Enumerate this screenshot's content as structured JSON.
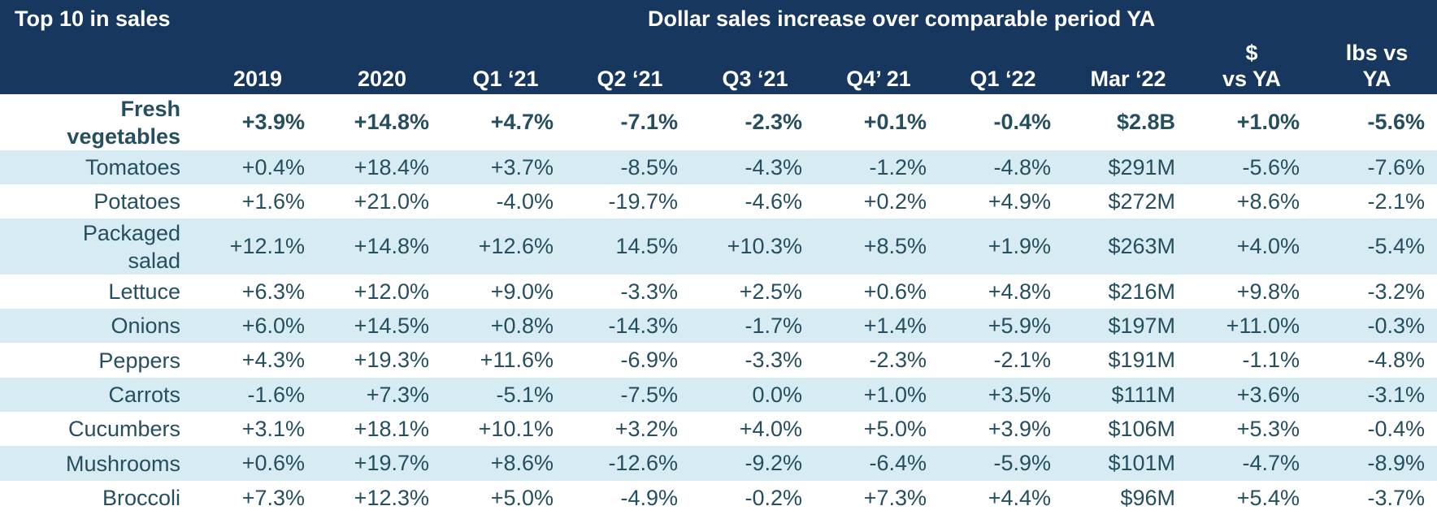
{
  "header": {
    "left_title": "Top 10 in sales",
    "right_title": "Dollar sales increase over comparable period YA",
    "columns": [
      "2019",
      "2020",
      "Q1 ‘21",
      "Q2 ‘21",
      "Q3 ‘21",
      "Q4’ 21",
      "Q1 ‘22",
      "Mar ‘22",
      "$\nvs YA",
      "lbs vs\nYA"
    ]
  },
  "rows": [
    {
      "label": "Fresh\nvegetables",
      "values": [
        "+3.9%",
        "+14.8%",
        "+4.7%",
        "-7.1%",
        "-2.3%",
        "+0.1%",
        "-0.4%",
        "$2.8B",
        "+1.0%",
        "-5.6%"
      ]
    },
    {
      "label": "Tomatoes",
      "values": [
        "+0.4%",
        "+18.4%",
        "+3.7%",
        "-8.5%",
        "-4.3%",
        "-1.2%",
        "-4.8%",
        "$291M",
        "-5.6%",
        "-7.6%"
      ]
    },
    {
      "label": "Potatoes",
      "values": [
        "+1.6%",
        "+21.0%",
        "-4.0%",
        "-19.7%",
        "-4.6%",
        "+0.2%",
        "+4.9%",
        "$272M",
        "+8.6%",
        "-2.1%"
      ]
    },
    {
      "label": "Packaged\nsalad",
      "values": [
        "+12.1%",
        "+14.8%",
        "+12.6%",
        "14.5%",
        "+10.3%",
        "+8.5%",
        "+1.9%",
        "$263M",
        "+4.0%",
        "-5.4%"
      ]
    },
    {
      "label": "Lettuce",
      "values": [
        "+6.3%",
        "+12.0%",
        "+9.0%",
        "-3.3%",
        "+2.5%",
        "+0.6%",
        "+4.8%",
        "$216M",
        "+9.8%",
        "-3.2%"
      ]
    },
    {
      "label": "Onions",
      "values": [
        "+6.0%",
        "+14.5%",
        "+0.8%",
        "-14.3%",
        "-1.7%",
        "+1.4%",
        "+5.9%",
        "$197M",
        "+11.0%",
        "-0.3%"
      ]
    },
    {
      "label": "Peppers",
      "values": [
        "+4.3%",
        "+19.3%",
        "+11.6%",
        "-6.9%",
        "-3.3%",
        "-2.3%",
        "-2.1%",
        "$191M",
        "-1.1%",
        "-4.8%"
      ]
    },
    {
      "label": "Carrots",
      "values": [
        "-1.6%",
        "+7.3%",
        "-5.1%",
        "-7.5%",
        "0.0%",
        "+1.0%",
        "+3.5%",
        "$111M",
        "+3.6%",
        "-3.1%"
      ]
    },
    {
      "label": "Cucumbers",
      "values": [
        "+3.1%",
        "+18.1%",
        "+10.1%",
        "+3.2%",
        "+4.0%",
        "+5.0%",
        "+3.9%",
        "$106M",
        "+5.3%",
        "-0.4%"
      ]
    },
    {
      "label": "Mushrooms",
      "values": [
        "+0.6%",
        "+19.7%",
        "+8.6%",
        "-12.6%",
        "-9.2%",
        "-6.4%",
        "-5.9%",
        "$101M",
        "-4.7%",
        "-8.9%"
      ]
    },
    {
      "label": "Broccoli",
      "values": [
        "+7.3%",
        "+12.3%",
        "+5.0%",
        "-4.9%",
        "-0.2%",
        "+7.3%",
        "+4.4%",
        "$96M",
        "+5.4%",
        "-3.7%"
      ]
    }
  ],
  "colors": {
    "header_bg": "#17375e",
    "stripe_bg": "#d6ebf2",
    "text": "#254f5e"
  }
}
